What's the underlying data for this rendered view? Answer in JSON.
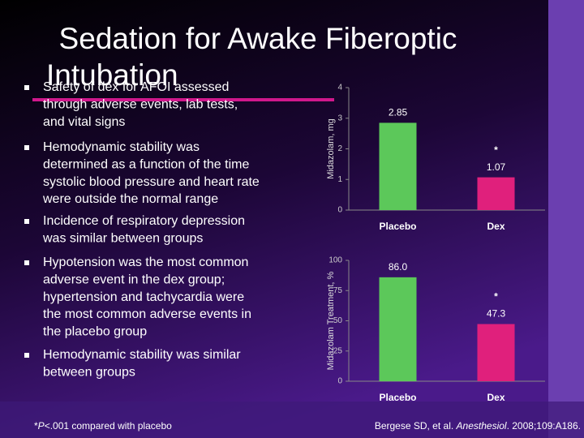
{
  "slide": {
    "title_lines": [
      "Sedation for Awake Fiberoptic",
      "Intubation"
    ],
    "bullets": [
      [
        "Safety of dex for AFOI assessed",
        "through adverse events, lab tests,",
        "and vital signs"
      ],
      [
        "Hemodynamic stability was",
        "determined as a function of the time",
        "systolic blood pressure and heart rate",
        "were outside the normal range"
      ],
      [
        "Incidence of respiratory depression",
        "was similar between groups"
      ],
      [
        "Hypotension was the most common",
        "adverse event in the dex group;",
        "hypertension and tachycardia were",
        "the most common adverse events in",
        "the placebo group"
      ],
      [
        "Hemodynamic stability was similar",
        "between groups"
      ]
    ],
    "footnote": [
      "*",
      "P",
      "<.001 compared with placebo"
    ],
    "citation": [
      "Bergese SD, et al. ",
      "Anesthesiol",
      ". 2008;109:A186."
    ]
  },
  "chart_data": [
    {
      "type": "bar",
      "y_label": "Midazolam, mg",
      "categories": [
        "Placebo",
        "Dex"
      ],
      "values": [
        2.85,
        1.07
      ],
      "colors": [
        "#5cc85a",
        "#e0207c"
      ],
      "ylim": [
        0,
        4
      ],
      "yticks": [
        0,
        1,
        2,
        3,
        4
      ],
      "annotation": "*"
    },
    {
      "type": "bar",
      "y_label": "Midazolam Treatment, %",
      "categories": [
        "Placebo",
        "Dex"
      ],
      "values": [
        86,
        47.3
      ],
      "value_labels": [
        "86.0",
        "47.3"
      ],
      "colors": [
        "#5cc85a",
        "#e0207c"
      ],
      "ylim": [
        0,
        100
      ],
      "yticks": [
        0,
        25,
        50,
        75,
        100
      ],
      "annotation": "*"
    }
  ]
}
